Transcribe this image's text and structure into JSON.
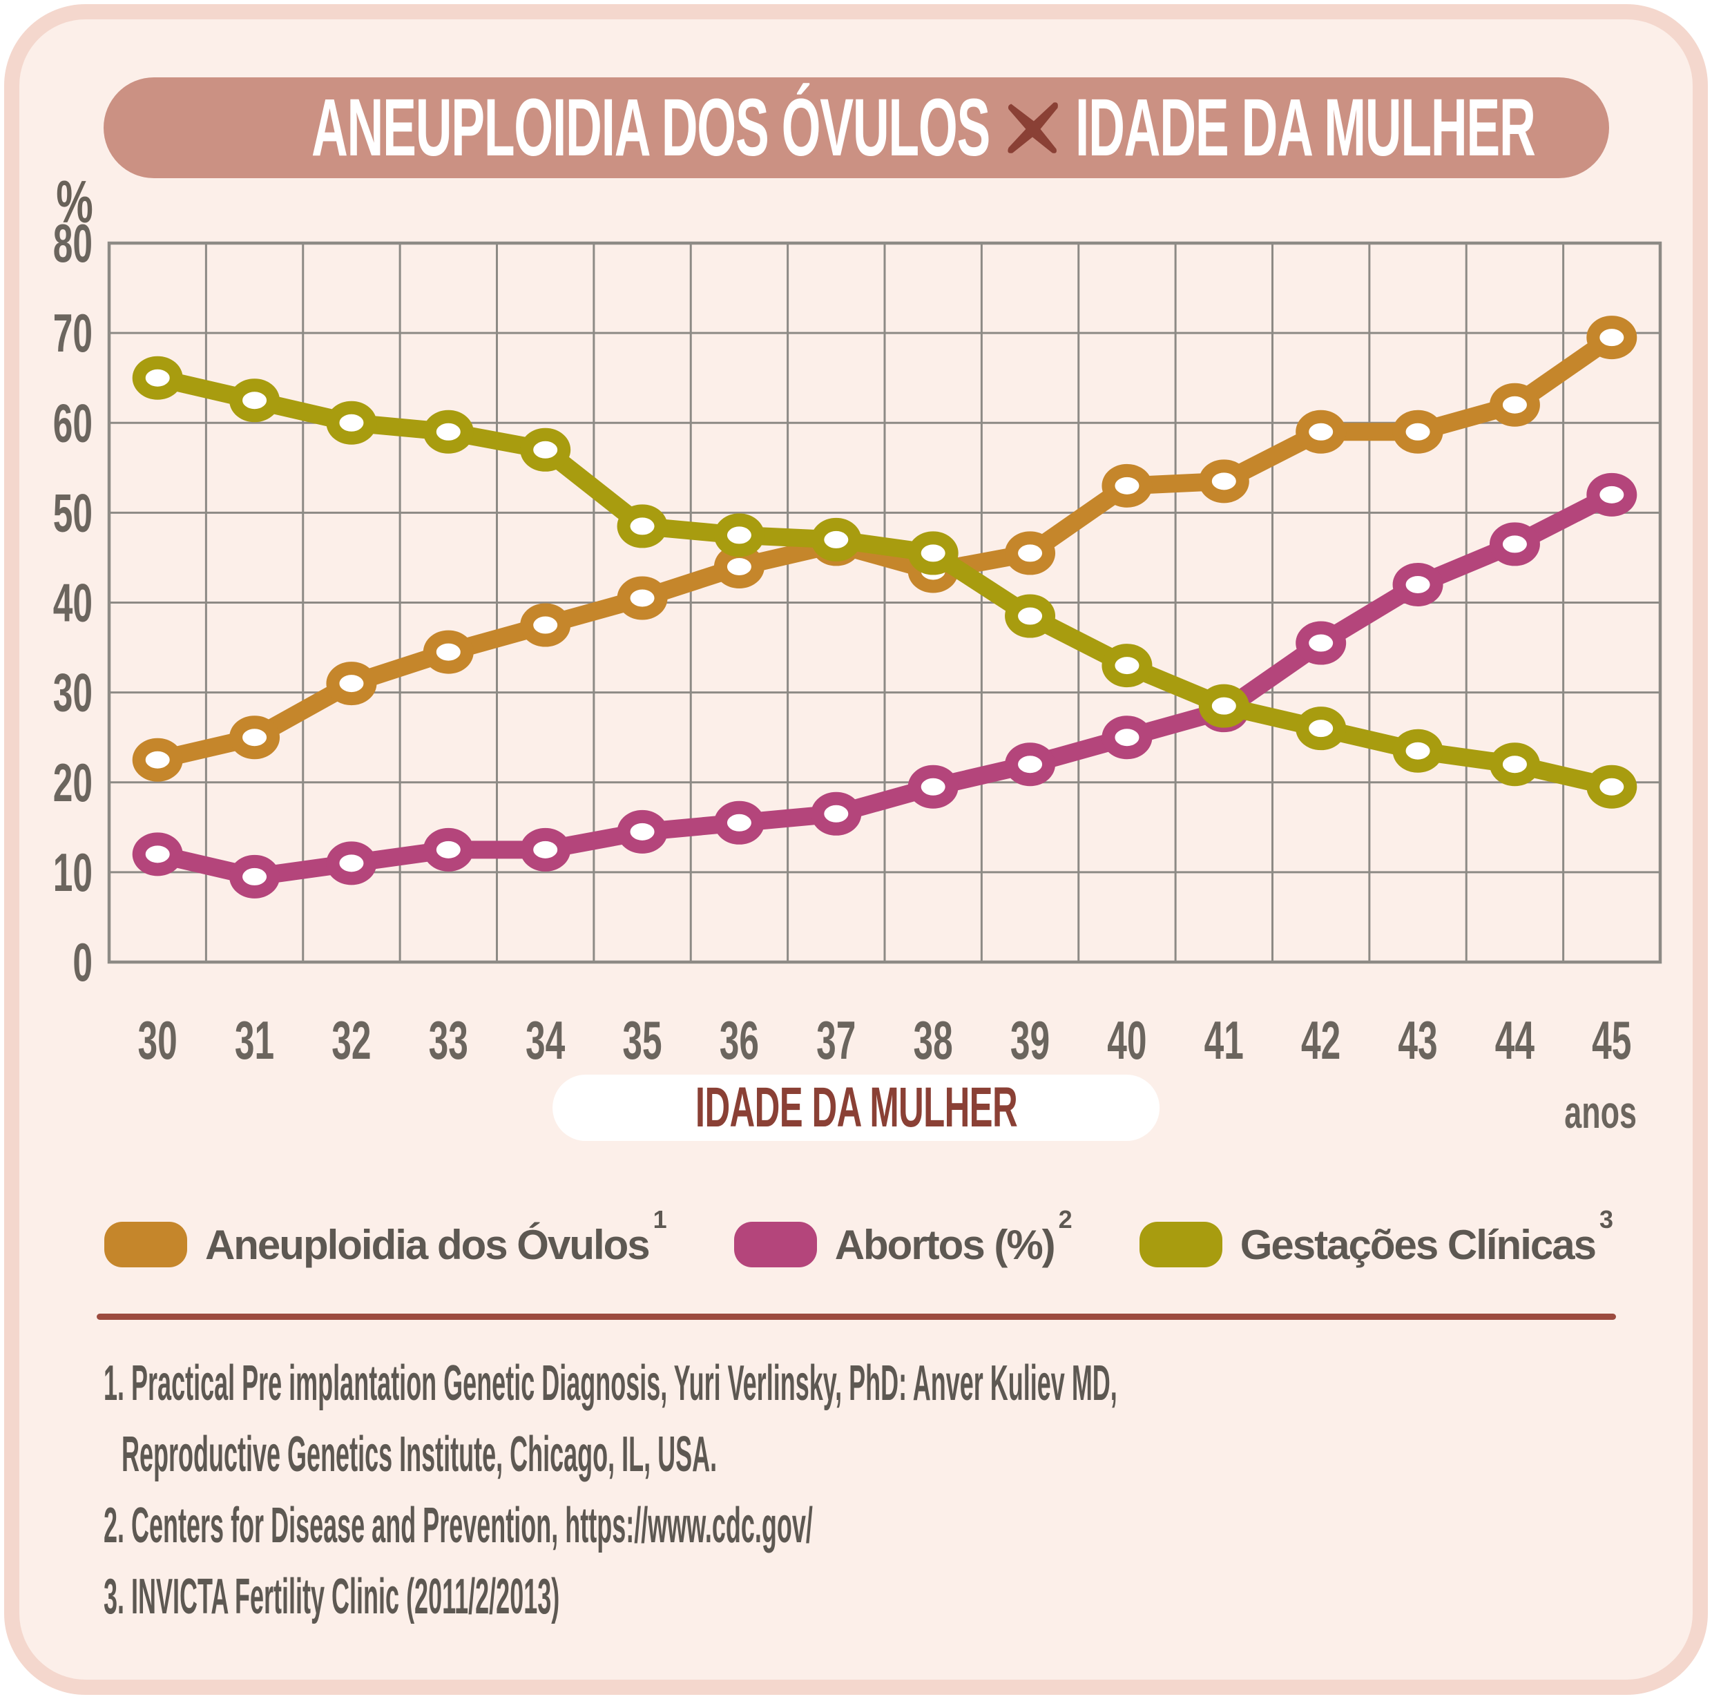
{
  "title": {
    "part1": "ANEUPLOIDIA DOS ÓVULOS",
    "separator_icon": "x-cross-icon",
    "part2": "IDADE DA MULHER"
  },
  "y_axis": {
    "unit_label": "%",
    "ticks": [
      80,
      70,
      60,
      50,
      40,
      30,
      20,
      10,
      0
    ]
  },
  "x_axis": {
    "ticks": [
      30,
      31,
      32,
      33,
      34,
      35,
      36,
      37,
      38,
      39,
      40,
      41,
      42,
      43,
      44,
      45
    ],
    "unit_label": "anos",
    "title": "IDADE DA MULHER"
  },
  "legend": {
    "items": [
      {
        "label": "Aneuploidia dos Óvulos",
        "sup": "1",
        "color": "#c5862b"
      },
      {
        "label": "Abortos (%)",
        "sup": "2",
        "color": "#b4457b"
      },
      {
        "label": "Gestações Clínicas",
        "sup": "3",
        "color": "#a89c0f"
      }
    ]
  },
  "footnotes": {
    "lines": [
      {
        "text": "1. Practical Pre implantation Genetic Diagnosis, Yuri Verlinsky, PhD: Anver Kuliev MD,",
        "indent": false
      },
      {
        "text": "Reproductive Genetics Institute, Chicago, IL, USA.",
        "indent": true
      },
      {
        "text": "2. Centers for Disease and Prevention, https://www.cdc.gov/",
        "indent": false
      },
      {
        "text": "3. INVICTA Fertility Clinic (2011/2/2013)",
        "indent": false
      }
    ]
  },
  "colors": {
    "card_background": "#fcefe9",
    "card_border": "#f4d7cd",
    "banner_background": "#cb9183",
    "banner_text": "#ffffff",
    "x_cross": "#8a4035",
    "gridline": "#8d8a85",
    "tick_text": "#6b655e",
    "maroon_text": "#8a4035",
    "divider_rule": "#9c4b3f",
    "footnote_text": "#5d5852"
  },
  "chart_data": {
    "type": "line",
    "title": "ANEUPLOIDIA DOS ÓVULOS x IDADE DA MULHER",
    "xlabel": "IDADE DA MULHER (anos)",
    "ylabel": "%",
    "ylim": [
      0,
      80
    ],
    "grid": true,
    "legend_position": "bottom",
    "x": [
      30,
      31,
      32,
      33,
      34,
      35,
      36,
      37,
      38,
      39,
      40,
      41,
      42,
      43,
      44,
      45
    ],
    "series": [
      {
        "name": "Aneuploidia dos Óvulos",
        "color": "#c5862b",
        "values": [
          22.5,
          25,
          31,
          34.5,
          37.5,
          40.5,
          44,
          46.5,
          43.5,
          45.5,
          53,
          53.5,
          59,
          59,
          62,
          69.5
        ]
      },
      {
        "name": "Abortos (%)",
        "color": "#b4457b",
        "values": [
          12,
          9.5,
          11,
          12.5,
          12.5,
          14.5,
          15.5,
          16.5,
          19.5,
          22,
          25,
          28,
          35.5,
          42,
          46.5,
          52
        ]
      },
      {
        "name": "Gestações Clínicas",
        "color": "#a89c0f",
        "values": [
          65,
          62.5,
          60,
          59,
          57,
          48.5,
          47.5,
          47,
          45.5,
          38.5,
          33,
          28.5,
          26,
          23.5,
          22,
          19.5
        ]
      }
    ]
  }
}
